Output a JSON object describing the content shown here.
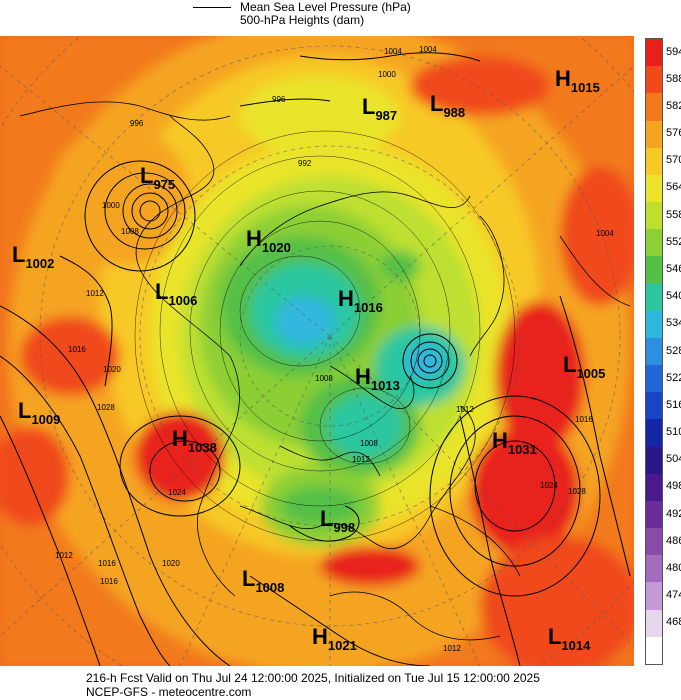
{
  "legend": {
    "line1": "Mean Sea Level Pressure (hPa)",
    "line2": "500-hPa Heights (dam)"
  },
  "colorbar": {
    "levels": [
      {
        "label": "594",
        "color": "#e8201c"
      },
      {
        "label": "588",
        "color": "#f04a1a"
      },
      {
        "label": "582",
        "color": "#f27a1e"
      },
      {
        "label": "576",
        "color": "#f5a422"
      },
      {
        "label": "570",
        "color": "#f7c927"
      },
      {
        "label": "564",
        "color": "#eae42c"
      },
      {
        "label": "558",
        "color": "#bde030"
      },
      {
        "label": "552",
        "color": "#8ccf36"
      },
      {
        "label": "546",
        "color": "#55c046"
      },
      {
        "label": "540",
        "color": "#2cc7a0"
      },
      {
        "label": "534",
        "color": "#30b7de"
      },
      {
        "label": "528",
        "color": "#2e8fe0"
      },
      {
        "label": "522",
        "color": "#2366d6"
      },
      {
        "label": "516",
        "color": "#1a44c6"
      },
      {
        "label": "510",
        "color": "#1428a6"
      },
      {
        "label": "504",
        "color": "#2a1688"
      },
      {
        "label": "498",
        "color": "#4a1a8c"
      },
      {
        "label": "492",
        "color": "#6a2c98"
      },
      {
        "label": "486",
        "color": "#8a4aa8"
      },
      {
        "label": "480",
        "color": "#a46cbc"
      },
      {
        "label": "474",
        "color": "#c49ad4"
      },
      {
        "label": "468",
        "color": "#e6d6ee"
      },
      {
        "label": "",
        "color": "#ffffff"
      }
    ]
  },
  "pressure_centers": [
    {
      "type": "H",
      "value": "1015"
    },
    {
      "type": "L",
      "value": "987"
    },
    {
      "type": "L",
      "value": "988"
    },
    {
      "type": "L",
      "value": "975"
    },
    {
      "type": "L",
      "value": "1002"
    },
    {
      "type": "H",
      "value": "1020"
    },
    {
      "type": "L",
      "value": "1006"
    },
    {
      "type": "H",
      "value": "1016"
    },
    {
      "type": "L",
      "value": "1005"
    },
    {
      "type": "H",
      "value": "1013"
    },
    {
      "type": "L",
      "value": "1009"
    },
    {
      "type": "H",
      "value": "1038"
    },
    {
      "type": "H",
      "value": "1031"
    },
    {
      "type": "L",
      "value": "998"
    },
    {
      "type": "L",
      "value": "1008"
    },
    {
      "type": "H",
      "value": "1021"
    },
    {
      "type": "L",
      "value": "1014"
    }
  ],
  "contour_labels": [
    "1004",
    "1004",
    "1000",
    "996",
    "992",
    "996",
    "1000",
    "1008",
    "1012",
    "1016",
    "1020",
    "1028",
    "1024",
    "1016",
    "1012",
    "1008",
    "1012",
    "1024",
    "1028",
    "1016",
    "1012",
    "1016",
    "1020",
    "1008",
    "1012",
    "1004"
  ],
  "footer": {
    "line1": "216-h Fcst Valid on Thu Jul 24 12:00:00 2025, Initialized on Tue Jul 15 12:00:00 2025",
    "line2": "NCEP-GFS  - meteocentre.com"
  }
}
